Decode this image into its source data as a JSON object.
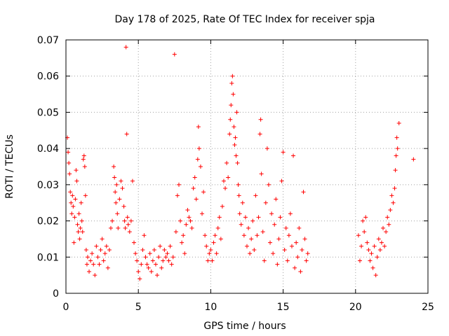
{
  "chart_data": {
    "type": "scatter",
    "title": "Day 178 of 2025, Rate Of TEC Index for receiver spja",
    "xlabel": "GPS time / hours",
    "ylabel": "ROTI / TECUs",
    "xlim": [
      0,
      25
    ],
    "ylim": [
      0,
      0.07
    ],
    "xticks": [
      "0",
      "5",
      "10",
      "15",
      "20",
      "25"
    ],
    "yticks": [
      "0",
      "0.01",
      "0.02",
      "0.03",
      "0.04",
      "0.05",
      "0.06",
      "0.07"
    ],
    "grid": true,
    "marker": "+",
    "color": "#ff0000",
    "series": [
      {
        "name": "ROTI",
        "points": [
          [
            0.1,
            0.043
          ],
          [
            0.15,
            0.039
          ],
          [
            0.2,
            0.036
          ],
          [
            0.25,
            0.033
          ],
          [
            0.3,
            0.028
          ],
          [
            0.35,
            0.025
          ],
          [
            0.4,
            0.022
          ],
          [
            0.45,
            0.027
          ],
          [
            0.5,
            0.024
          ],
          [
            0.55,
            0.014
          ],
          [
            0.6,
            0.021
          ],
          [
            0.65,
            0.026
          ],
          [
            0.7,
            0.034
          ],
          [
            0.75,
            0.031
          ],
          [
            0.8,
            0.019
          ],
          [
            0.85,
            0.017
          ],
          [
            0.9,
            0.022
          ],
          [
            0.95,
            0.015
          ],
          [
            1.0,
            0.018
          ],
          [
            1.05,
            0.025
          ],
          [
            1.1,
            0.02
          ],
          [
            1.15,
            0.017
          ],
          [
            1.2,
            0.037
          ],
          [
            1.25,
            0.038
          ],
          [
            1.3,
            0.035
          ],
          [
            1.35,
            0.027
          ],
          [
            1.4,
            0.012
          ],
          [
            1.45,
            0.008
          ],
          [
            1.5,
            0.01
          ],
          [
            1.6,
            0.006
          ],
          [
            1.7,
            0.009
          ],
          [
            1.8,
            0.011
          ],
          [
            1.9,
            0.008
          ],
          [
            2.0,
            0.005
          ],
          [
            2.1,
            0.013
          ],
          [
            2.2,
            0.01
          ],
          [
            2.3,
            0.008
          ],
          [
            2.4,
            0.012
          ],
          [
            2.5,
            0.015
          ],
          [
            2.6,
            0.009
          ],
          [
            2.7,
            0.011
          ],
          [
            2.8,
            0.013
          ],
          [
            2.9,
            0.007
          ],
          [
            3.0,
            0.012
          ],
          [
            3.1,
            0.018
          ],
          [
            3.2,
            0.02
          ],
          [
            3.3,
            0.035
          ],
          [
            3.35,
            0.032
          ],
          [
            3.4,
            0.028
          ],
          [
            3.45,
            0.025
          ],
          [
            3.5,
            0.03
          ],
          [
            3.55,
            0.022
          ],
          [
            3.6,
            0.018
          ],
          [
            3.7,
            0.026
          ],
          [
            3.8,
            0.031
          ],
          [
            3.9,
            0.029
          ],
          [
            4.0,
            0.024
          ],
          [
            4.05,
            0.02
          ],
          [
            4.1,
            0.018
          ],
          [
            4.15,
            0.068
          ],
          [
            4.2,
            0.044
          ],
          [
            4.25,
            0.021
          ],
          [
            4.3,
            0.019
          ],
          [
            4.4,
            0.017
          ],
          [
            4.5,
            0.02
          ],
          [
            4.6,
            0.031
          ],
          [
            4.7,
            0.014
          ],
          [
            4.8,
            0.011
          ],
          [
            4.9,
            0.009
          ],
          [
            5.0,
            0.006
          ],
          [
            5.1,
            0.004
          ],
          [
            5.2,
            0.008
          ],
          [
            5.3,
            0.012
          ],
          [
            5.4,
            0.016
          ],
          [
            5.5,
            0.01
          ],
          [
            5.6,
            0.008
          ],
          [
            5.7,
            0.007
          ],
          [
            5.8,
            0.011
          ],
          [
            5.9,
            0.006
          ],
          [
            6.0,
            0.009
          ],
          [
            6.1,
            0.012
          ],
          [
            6.2,
            0.008
          ],
          [
            6.3,
            0.005
          ],
          [
            6.4,
            0.01
          ],
          [
            6.5,
            0.013
          ],
          [
            6.6,
            0.007
          ],
          [
            6.7,
            0.009
          ],
          [
            6.8,
            0.012
          ],
          [
            6.9,
            0.01
          ],
          [
            7.0,
            0.011
          ],
          [
            7.1,
            0.009
          ],
          [
            7.2,
            0.013
          ],
          [
            7.3,
            0.008
          ],
          [
            7.4,
            0.01
          ],
          [
            7.5,
            0.066
          ],
          [
            7.6,
            0.017
          ],
          [
            7.7,
            0.027
          ],
          [
            7.8,
            0.03
          ],
          [
            7.9,
            0.02
          ],
          [
            8.0,
            0.014
          ],
          [
            8.1,
            0.016
          ],
          [
            8.2,
            0.011
          ],
          [
            8.3,
            0.019
          ],
          [
            8.4,
            0.023
          ],
          [
            8.5,
            0.021
          ],
          [
            8.6,
            0.02
          ],
          [
            8.7,
            0.018
          ],
          [
            8.8,
            0.029
          ],
          [
            8.9,
            0.032
          ],
          [
            9.0,
            0.026
          ],
          [
            9.1,
            0.037
          ],
          [
            9.15,
            0.046
          ],
          [
            9.2,
            0.04
          ],
          [
            9.3,
            0.035
          ],
          [
            9.4,
            0.022
          ],
          [
            9.5,
            0.028
          ],
          [
            9.6,
            0.016
          ],
          [
            9.7,
            0.013
          ],
          [
            9.8,
            0.009
          ],
          [
            9.9,
            0.011
          ],
          [
            10.0,
            0.012
          ],
          [
            10.1,
            0.009
          ],
          [
            10.2,
            0.014
          ],
          [
            10.3,
            0.016
          ],
          [
            10.4,
            0.011
          ],
          [
            10.5,
            0.018
          ],
          [
            10.6,
            0.021
          ],
          [
            10.7,
            0.015
          ],
          [
            10.8,
            0.024
          ],
          [
            10.9,
            0.031
          ],
          [
            11.0,
            0.029
          ],
          [
            11.1,
            0.036
          ],
          [
            11.2,
            0.032
          ],
          [
            11.3,
            0.044
          ],
          [
            11.35,
            0.048
          ],
          [
            11.4,
            0.052
          ],
          [
            11.45,
            0.058
          ],
          [
            11.5,
            0.06
          ],
          [
            11.55,
            0.055
          ],
          [
            11.6,
            0.046
          ],
          [
            11.65,
            0.041
          ],
          [
            11.7,
            0.043
          ],
          [
            11.75,
            0.038
          ],
          [
            11.8,
            0.05
          ],
          [
            11.85,
            0.036
          ],
          [
            11.9,
            0.03
          ],
          [
            11.95,
            0.027
          ],
          [
            12.0,
            0.022
          ],
          [
            12.1,
            0.019
          ],
          [
            12.2,
            0.025
          ],
          [
            12.3,
            0.016
          ],
          [
            12.4,
            0.021
          ],
          [
            12.5,
            0.013
          ],
          [
            12.6,
            0.018
          ],
          [
            12.7,
            0.011
          ],
          [
            12.8,
            0.015
          ],
          [
            12.9,
            0.02
          ],
          [
            13.0,
            0.012
          ],
          [
            13.1,
            0.027
          ],
          [
            13.2,
            0.016
          ],
          [
            13.3,
            0.021
          ],
          [
            13.4,
            0.044
          ],
          [
            13.45,
            0.048
          ],
          [
            13.5,
            0.033
          ],
          [
            13.6,
            0.017
          ],
          [
            13.7,
            0.009
          ],
          [
            13.8,
            0.025
          ],
          [
            13.9,
            0.04
          ],
          [
            14.0,
            0.03
          ],
          [
            14.1,
            0.014
          ],
          [
            14.2,
            0.022
          ],
          [
            14.3,
            0.011
          ],
          [
            14.4,
            0.019
          ],
          [
            14.5,
            0.026
          ],
          [
            14.6,
            0.008
          ],
          [
            14.7,
            0.015
          ],
          [
            14.8,
            0.021
          ],
          [
            14.9,
            0.031
          ],
          [
            15.0,
            0.039
          ],
          [
            15.1,
            0.012
          ],
          [
            15.2,
            0.018
          ],
          [
            15.3,
            0.009
          ],
          [
            15.4,
            0.016
          ],
          [
            15.5,
            0.022
          ],
          [
            15.6,
            0.013
          ],
          [
            15.7,
            0.038
          ],
          [
            15.8,
            0.007
          ],
          [
            15.9,
            0.014
          ],
          [
            16.0,
            0.01
          ],
          [
            16.1,
            0.018
          ],
          [
            16.2,
            0.006
          ],
          [
            16.3,
            0.012
          ],
          [
            16.4,
            0.028
          ],
          [
            16.5,
            0.015
          ],
          [
            16.6,
            0.009
          ],
          [
            16.7,
            0.011
          ],
          [
            20.2,
            0.016
          ],
          [
            20.3,
            0.009
          ],
          [
            20.4,
            0.013
          ],
          [
            20.5,
            0.02
          ],
          [
            20.6,
            0.017
          ],
          [
            20.7,
            0.021
          ],
          [
            20.8,
            0.014
          ],
          [
            20.9,
            0.012
          ],
          [
            21.0,
            0.009
          ],
          [
            21.1,
            0.011
          ],
          [
            21.2,
            0.007
          ],
          [
            21.3,
            0.013
          ],
          [
            21.4,
            0.005
          ],
          [
            21.5,
            0.01
          ],
          [
            21.6,
            0.015
          ],
          [
            21.7,
            0.012
          ],
          [
            21.8,
            0.014
          ],
          [
            21.9,
            0.018
          ],
          [
            22.0,
            0.013
          ],
          [
            22.1,
            0.017
          ],
          [
            22.2,
            0.021
          ],
          [
            22.3,
            0.019
          ],
          [
            22.4,
            0.023
          ],
          [
            22.5,
            0.027
          ],
          [
            22.6,
            0.025
          ],
          [
            22.7,
            0.029
          ],
          [
            22.75,
            0.034
          ],
          [
            22.8,
            0.038
          ],
          [
            22.85,
            0.043
          ],
          [
            22.9,
            0.04
          ],
          [
            23.0,
            0.047
          ],
          [
            24.0,
            0.037
          ]
        ]
      }
    ]
  }
}
